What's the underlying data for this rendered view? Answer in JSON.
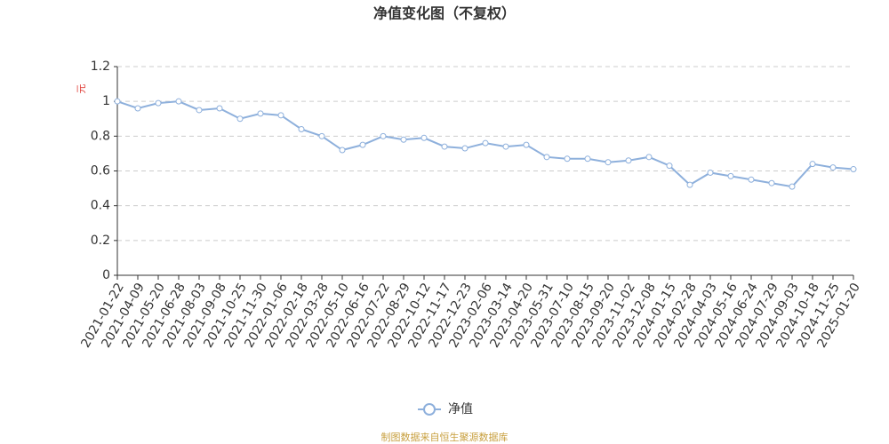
{
  "chart_data": {
    "type": "line",
    "title": "净值变化图（不复权）",
    "y_label": "元",
    "source": "制图数据来自恒生聚源数据库",
    "categories": [
      "2021-01-22",
      "2021-04-09",
      "2021-05-20",
      "2021-06-28",
      "2021-08-03",
      "2021-09-08",
      "2021-10-25",
      "2021-11-30",
      "2022-01-06",
      "2022-02-18",
      "2022-03-28",
      "2022-05-10",
      "2022-06-16",
      "2022-07-22",
      "2022-08-29",
      "2022-10-12",
      "2022-11-17",
      "2022-12-23",
      "2023-02-06",
      "2023-03-14",
      "2023-04-20",
      "2023-05-31",
      "2023-07-10",
      "2023-08-15",
      "2023-09-20",
      "2023-11-02",
      "2023-12-08",
      "2024-01-15",
      "2024-02-28",
      "2024-04-03",
      "2024-05-16",
      "2024-06-24",
      "2024-07-29",
      "2024-09-03",
      "2024-10-18",
      "2024-11-25",
      "2025-01-20"
    ],
    "series": [
      {
        "name": "净值",
        "color": "#8eb0dc",
        "values": [
          1.0,
          0.96,
          0.99,
          1.0,
          0.95,
          0.96,
          0.9,
          0.93,
          0.92,
          0.84,
          0.8,
          0.72,
          0.75,
          0.8,
          0.78,
          0.79,
          0.74,
          0.73,
          0.76,
          0.74,
          0.75,
          0.68,
          0.67,
          0.67,
          0.65,
          0.66,
          0.68,
          0.63,
          0.52,
          0.59,
          0.57,
          0.55,
          0.53,
          0.51,
          0.64,
          0.62,
          0.61
        ]
      }
    ],
    "ylim": [
      0,
      1.2
    ],
    "yticks": [
      0,
      0.2,
      0.4,
      0.6,
      0.8,
      1,
      1.2
    ],
    "grid": true
  }
}
